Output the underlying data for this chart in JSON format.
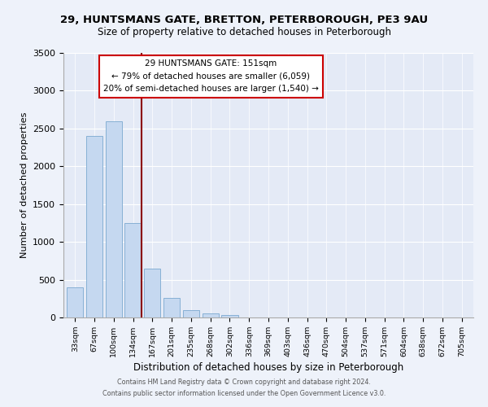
{
  "title1": "29, HUNTSMANS GATE, BRETTON, PETERBOROUGH, PE3 9AU",
  "title2": "Size of property relative to detached houses in Peterborough",
  "xlabel": "Distribution of detached houses by size in Peterborough",
  "ylabel": "Number of detached properties",
  "categories": [
    "33sqm",
    "67sqm",
    "100sqm",
    "134sqm",
    "167sqm",
    "201sqm",
    "235sqm",
    "268sqm",
    "302sqm",
    "336sqm",
    "369sqm",
    "403sqm",
    "436sqm",
    "470sqm",
    "504sqm",
    "537sqm",
    "571sqm",
    "604sqm",
    "638sqm",
    "672sqm",
    "705sqm"
  ],
  "values": [
    400,
    2400,
    2600,
    1250,
    650,
    260,
    100,
    55,
    30,
    0,
    0,
    0,
    0,
    0,
    0,
    0,
    0,
    0,
    0,
    0,
    0
  ],
  "bar_color": "#c5d8f0",
  "bar_edge_color": "#7ba8d0",
  "vline_color": "#8b0000",
  "annotation_line1": "29 HUNTSMANS GATE: 151sqm",
  "annotation_line2": "← 79% of detached houses are smaller (6,059)",
  "annotation_line3": "20% of semi-detached houses are larger (1,540) →",
  "ylim": [
    0,
    3500
  ],
  "yticks": [
    0,
    500,
    1000,
    1500,
    2000,
    2500,
    3000,
    3500
  ],
  "footer1": "Contains HM Land Registry data © Crown copyright and database right 2024.",
  "footer2": "Contains public sector information licensed under the Open Government Licence v3.0.",
  "bg_color": "#eef2fa",
  "plot_bg_color": "#e4eaf6",
  "grid_color": "#ffffff",
  "spine_color": "#aaaaaa"
}
